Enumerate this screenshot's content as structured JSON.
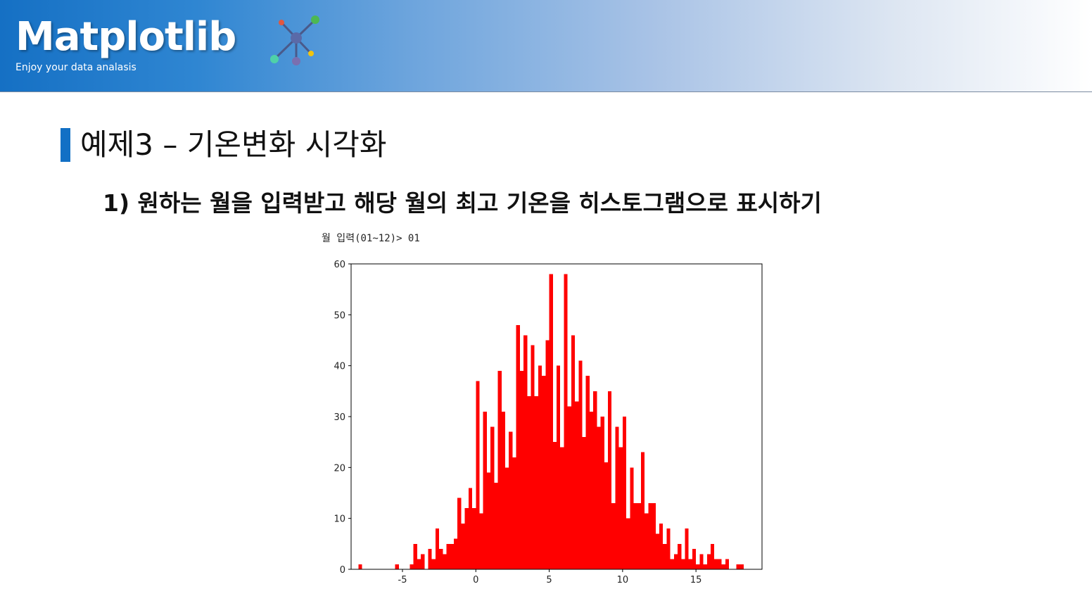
{
  "header": {
    "brand": "Matplotlib",
    "tagline": "Enjoy your data analasis",
    "logo_icon": "matplotlib-network-icon"
  },
  "slide": {
    "title": "예제3 – 기온변화 시각화",
    "subtitle": "1) 원하는 월을 입력받고 해당 월의 최고 기온을 히스토그램으로 표시하기",
    "console_prompt": "월 입력(01~12)> 01"
  },
  "colors": {
    "accent": "#1270c5",
    "bar": "#ff0000"
  },
  "chart_data": {
    "type": "bar",
    "title": "",
    "xlabel": "",
    "ylabel": "",
    "xlim": [
      -8.5,
      19.5
    ],
    "ylim": [
      0,
      60
    ],
    "xticks": [
      -5,
      0,
      5,
      10,
      15
    ],
    "xtick_labels": [
      "-5",
      "0",
      "5",
      "10",
      "15"
    ],
    "yticks": [
      0,
      10,
      20,
      30,
      40,
      50,
      60
    ],
    "ytick_labels": [
      "0",
      "10",
      "20",
      "30",
      "40",
      "50",
      "60"
    ],
    "bin_width": 0.25,
    "bin_start": -8.0,
    "counts": [
      1,
      0,
      0,
      0,
      0,
      0,
      0,
      0,
      0,
      0,
      1,
      0,
      0,
      0,
      1,
      5,
      2,
      3,
      0,
      4,
      2,
      8,
      4,
      3,
      5,
      5,
      6,
      14,
      9,
      12,
      16,
      12,
      37,
      11,
      31,
      19,
      28,
      17,
      39,
      31,
      20,
      27,
      22,
      48,
      39,
      46,
      34,
      44,
      34,
      40,
      38,
      45,
      58,
      25,
      40,
      24,
      58,
      32,
      46,
      33,
      41,
      26,
      38,
      31,
      35,
      28,
      30,
      21,
      35,
      13,
      28,
      24,
      30,
      10,
      20,
      13,
      13,
      23,
      11,
      13,
      13,
      7,
      9,
      5,
      8,
      2,
      3,
      5,
      2,
      8,
      2,
      4,
      1,
      3,
      1,
      3,
      5,
      2,
      2,
      1,
      2,
      0,
      0,
      1,
      1
    ]
  }
}
